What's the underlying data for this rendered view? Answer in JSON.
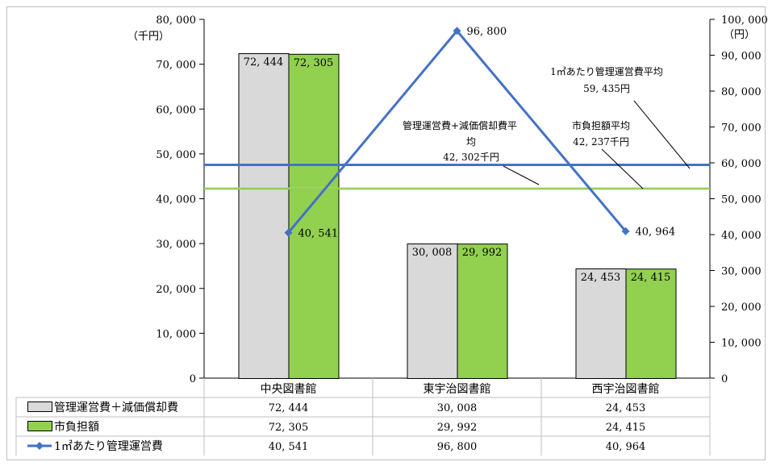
{
  "chart_data": {
    "type": "bar",
    "categories": [
      "中央図書館",
      "東宇治図書館",
      "西宇治図書館"
    ],
    "series": [
      {
        "name": "管理運営費＋減価償却費",
        "type": "bar",
        "axis": "left",
        "color": "#d9d9d9",
        "values": [
          72444,
          30008,
          24453
        ],
        "labels": [
          "72, 444",
          "30, 008",
          "24, 453"
        ]
      },
      {
        "name": "市負担額",
        "type": "bar",
        "axis": "left",
        "color": "#92d050",
        "values": [
          72305,
          29992,
          24415
        ],
        "labels": [
          "72, 305",
          "29, 992",
          "24, 415"
        ]
      },
      {
        "name": "1㎡あたり管理運営費",
        "type": "line",
        "axis": "right",
        "color": "#4472c4",
        "values": [
          40541,
          96800,
          40964
        ],
        "labels": [
          "40, 541",
          "96, 800",
          "40, 964"
        ]
      }
    ],
    "reference_lines": [
      {
        "axis": "right",
        "value": 59435,
        "color": "#4472c4",
        "label_lines": [
          "1㎡あたり管理運営費平均",
          "59, 435円"
        ]
      },
      {
        "axis": "left",
        "value": 42302,
        "color": "#d9d9d9",
        "label_lines": [
          "管理運営費+減価償却費平",
          "均",
          "42, 302千円"
        ]
      },
      {
        "axis": "left",
        "value": 42237,
        "color": "#92d050",
        "label_lines": [
          "市負担額平均",
          "42, 237千円"
        ]
      }
    ],
    "y_left": {
      "unit": "（千円）",
      "ylim": [
        0,
        80000
      ],
      "ticks": [
        0,
        10000,
        20000,
        30000,
        40000,
        50000,
        60000,
        70000,
        80000
      ],
      "tick_labels": [
        "0",
        "10, 000",
        "20, 000",
        "30, 000",
        "40, 000",
        "50, 000",
        "60, 000",
        "70, 000",
        "80, 000"
      ]
    },
    "y_right": {
      "unit": "（円）",
      "ylim": [
        0,
        100000
      ],
      "ticks": [
        0,
        10000,
        20000,
        30000,
        40000,
        50000,
        60000,
        70000,
        80000,
        90000,
        100000
      ],
      "tick_labels": [
        "0",
        "10, 000",
        "20, 000",
        "30, 000",
        "40, 000",
        "50, 000",
        "60, 000",
        "70, 000",
        "80, 000",
        "90, 000",
        "100, 000"
      ]
    },
    "data_table": {
      "rows": [
        {
          "legend": "管理運営費＋減価償却費",
          "values": [
            "72, 444",
            "30, 008",
            "24, 453"
          ]
        },
        {
          "legend": "市負担額",
          "values": [
            "72, 305",
            "29, 992",
            "24, 415"
          ]
        },
        {
          "legend": "1㎡あたり管理運営費",
          "values": [
            "40, 541",
            "96, 800",
            "40, 964"
          ]
        }
      ]
    },
    "grid": false
  }
}
